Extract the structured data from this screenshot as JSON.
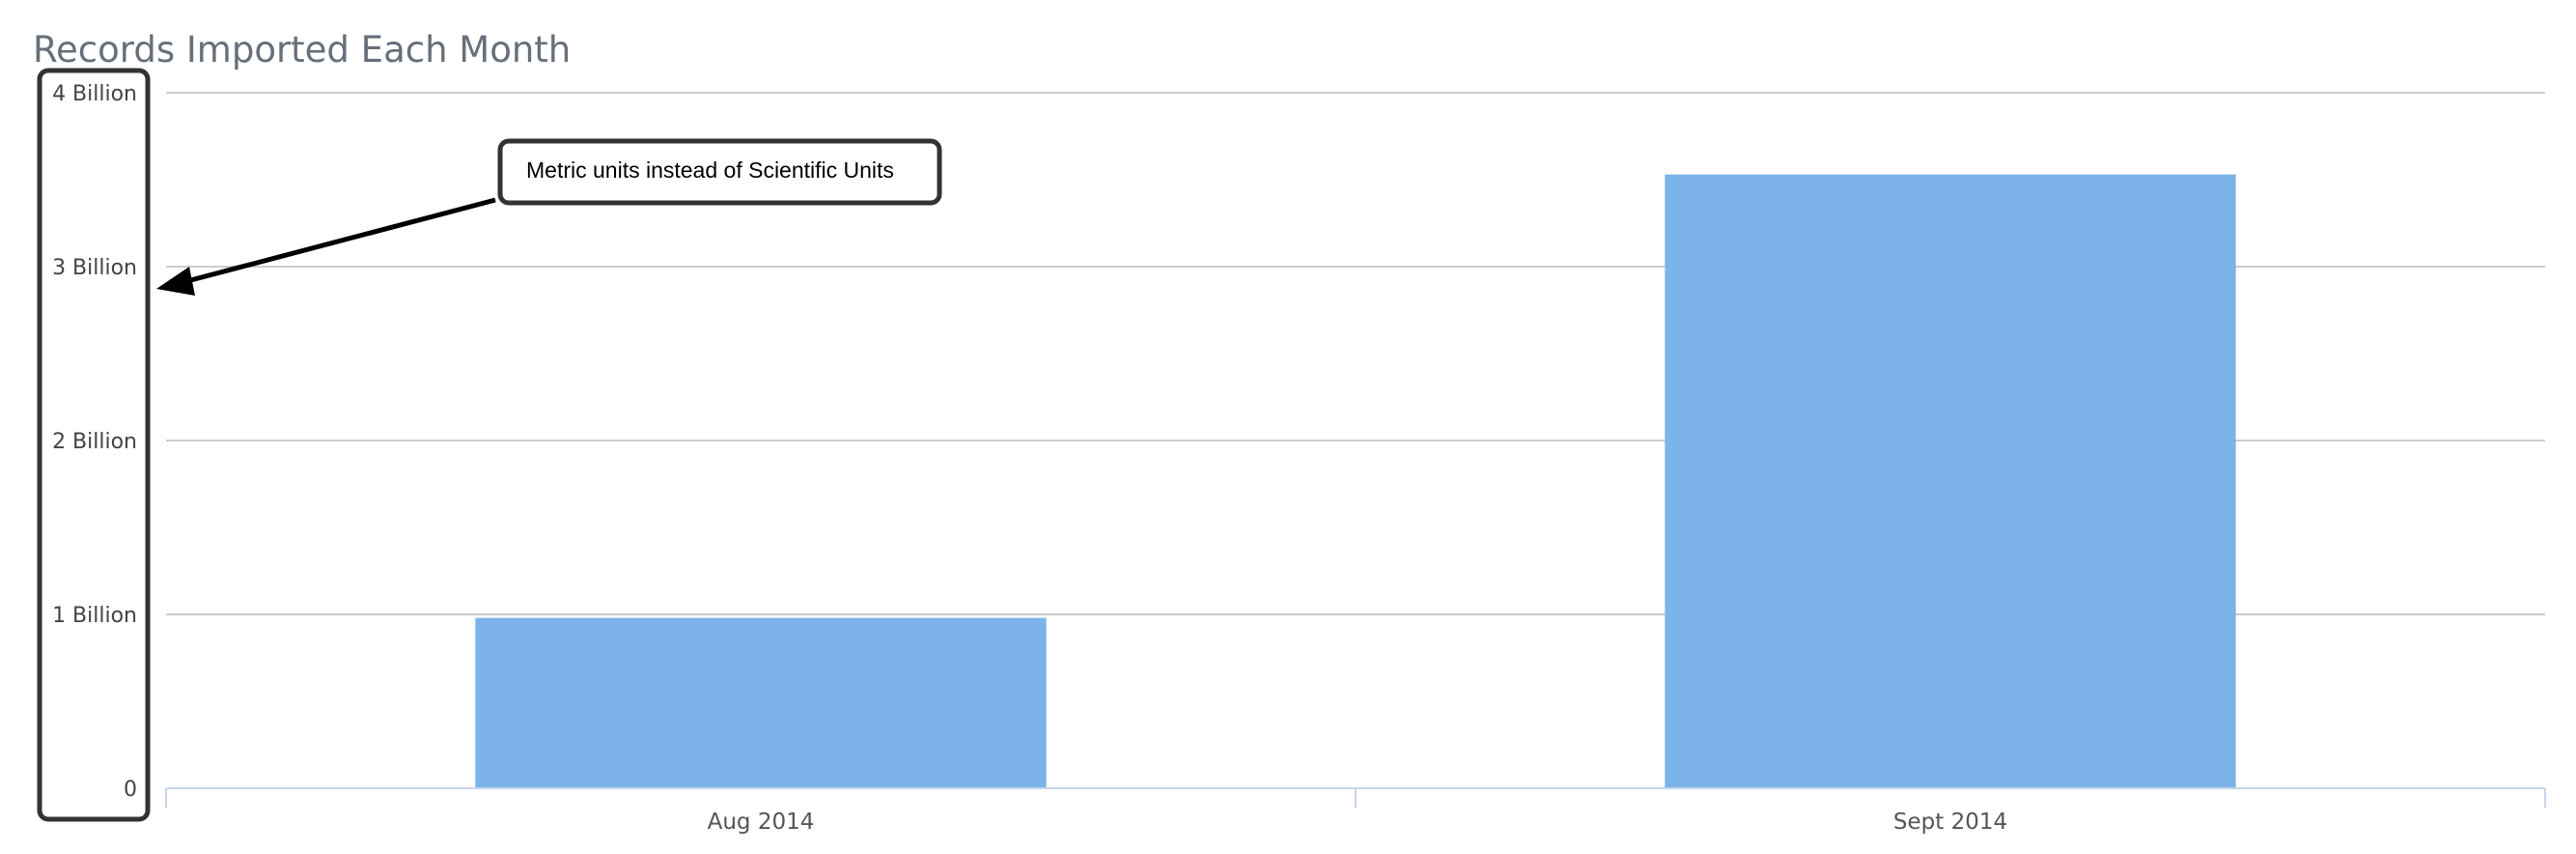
{
  "chart_data": {
    "type": "bar",
    "title": "Records Imported Each Month",
    "categories": [
      "Aug 2014",
      "Sept 2014"
    ],
    "values": [
      980000000,
      3530000000
    ],
    "ylim": [
      0,
      4000000000
    ],
    "yticks": [
      {
        "value": 0,
        "label": "0"
      },
      {
        "value": 1000000000,
        "label": "1 Billion"
      },
      {
        "value": 2000000000,
        "label": "2 Billion"
      },
      {
        "value": 3000000000,
        "label": "3 Billion"
      },
      {
        "value": 4000000000,
        "label": "4 Billion"
      }
    ],
    "grid": true,
    "legend": "none",
    "xlabel": "",
    "ylabel": "",
    "bar_color": "#7cb3ea",
    "annotation": {
      "text": "Metric units instead of Scientific Units"
    }
  },
  "colors": {
    "bar": "#7cb3ea",
    "grid": "#c8ccd2",
    "axis": "#c7d6e8",
    "title": "#666f7a",
    "highlight_box": "#333333"
  }
}
